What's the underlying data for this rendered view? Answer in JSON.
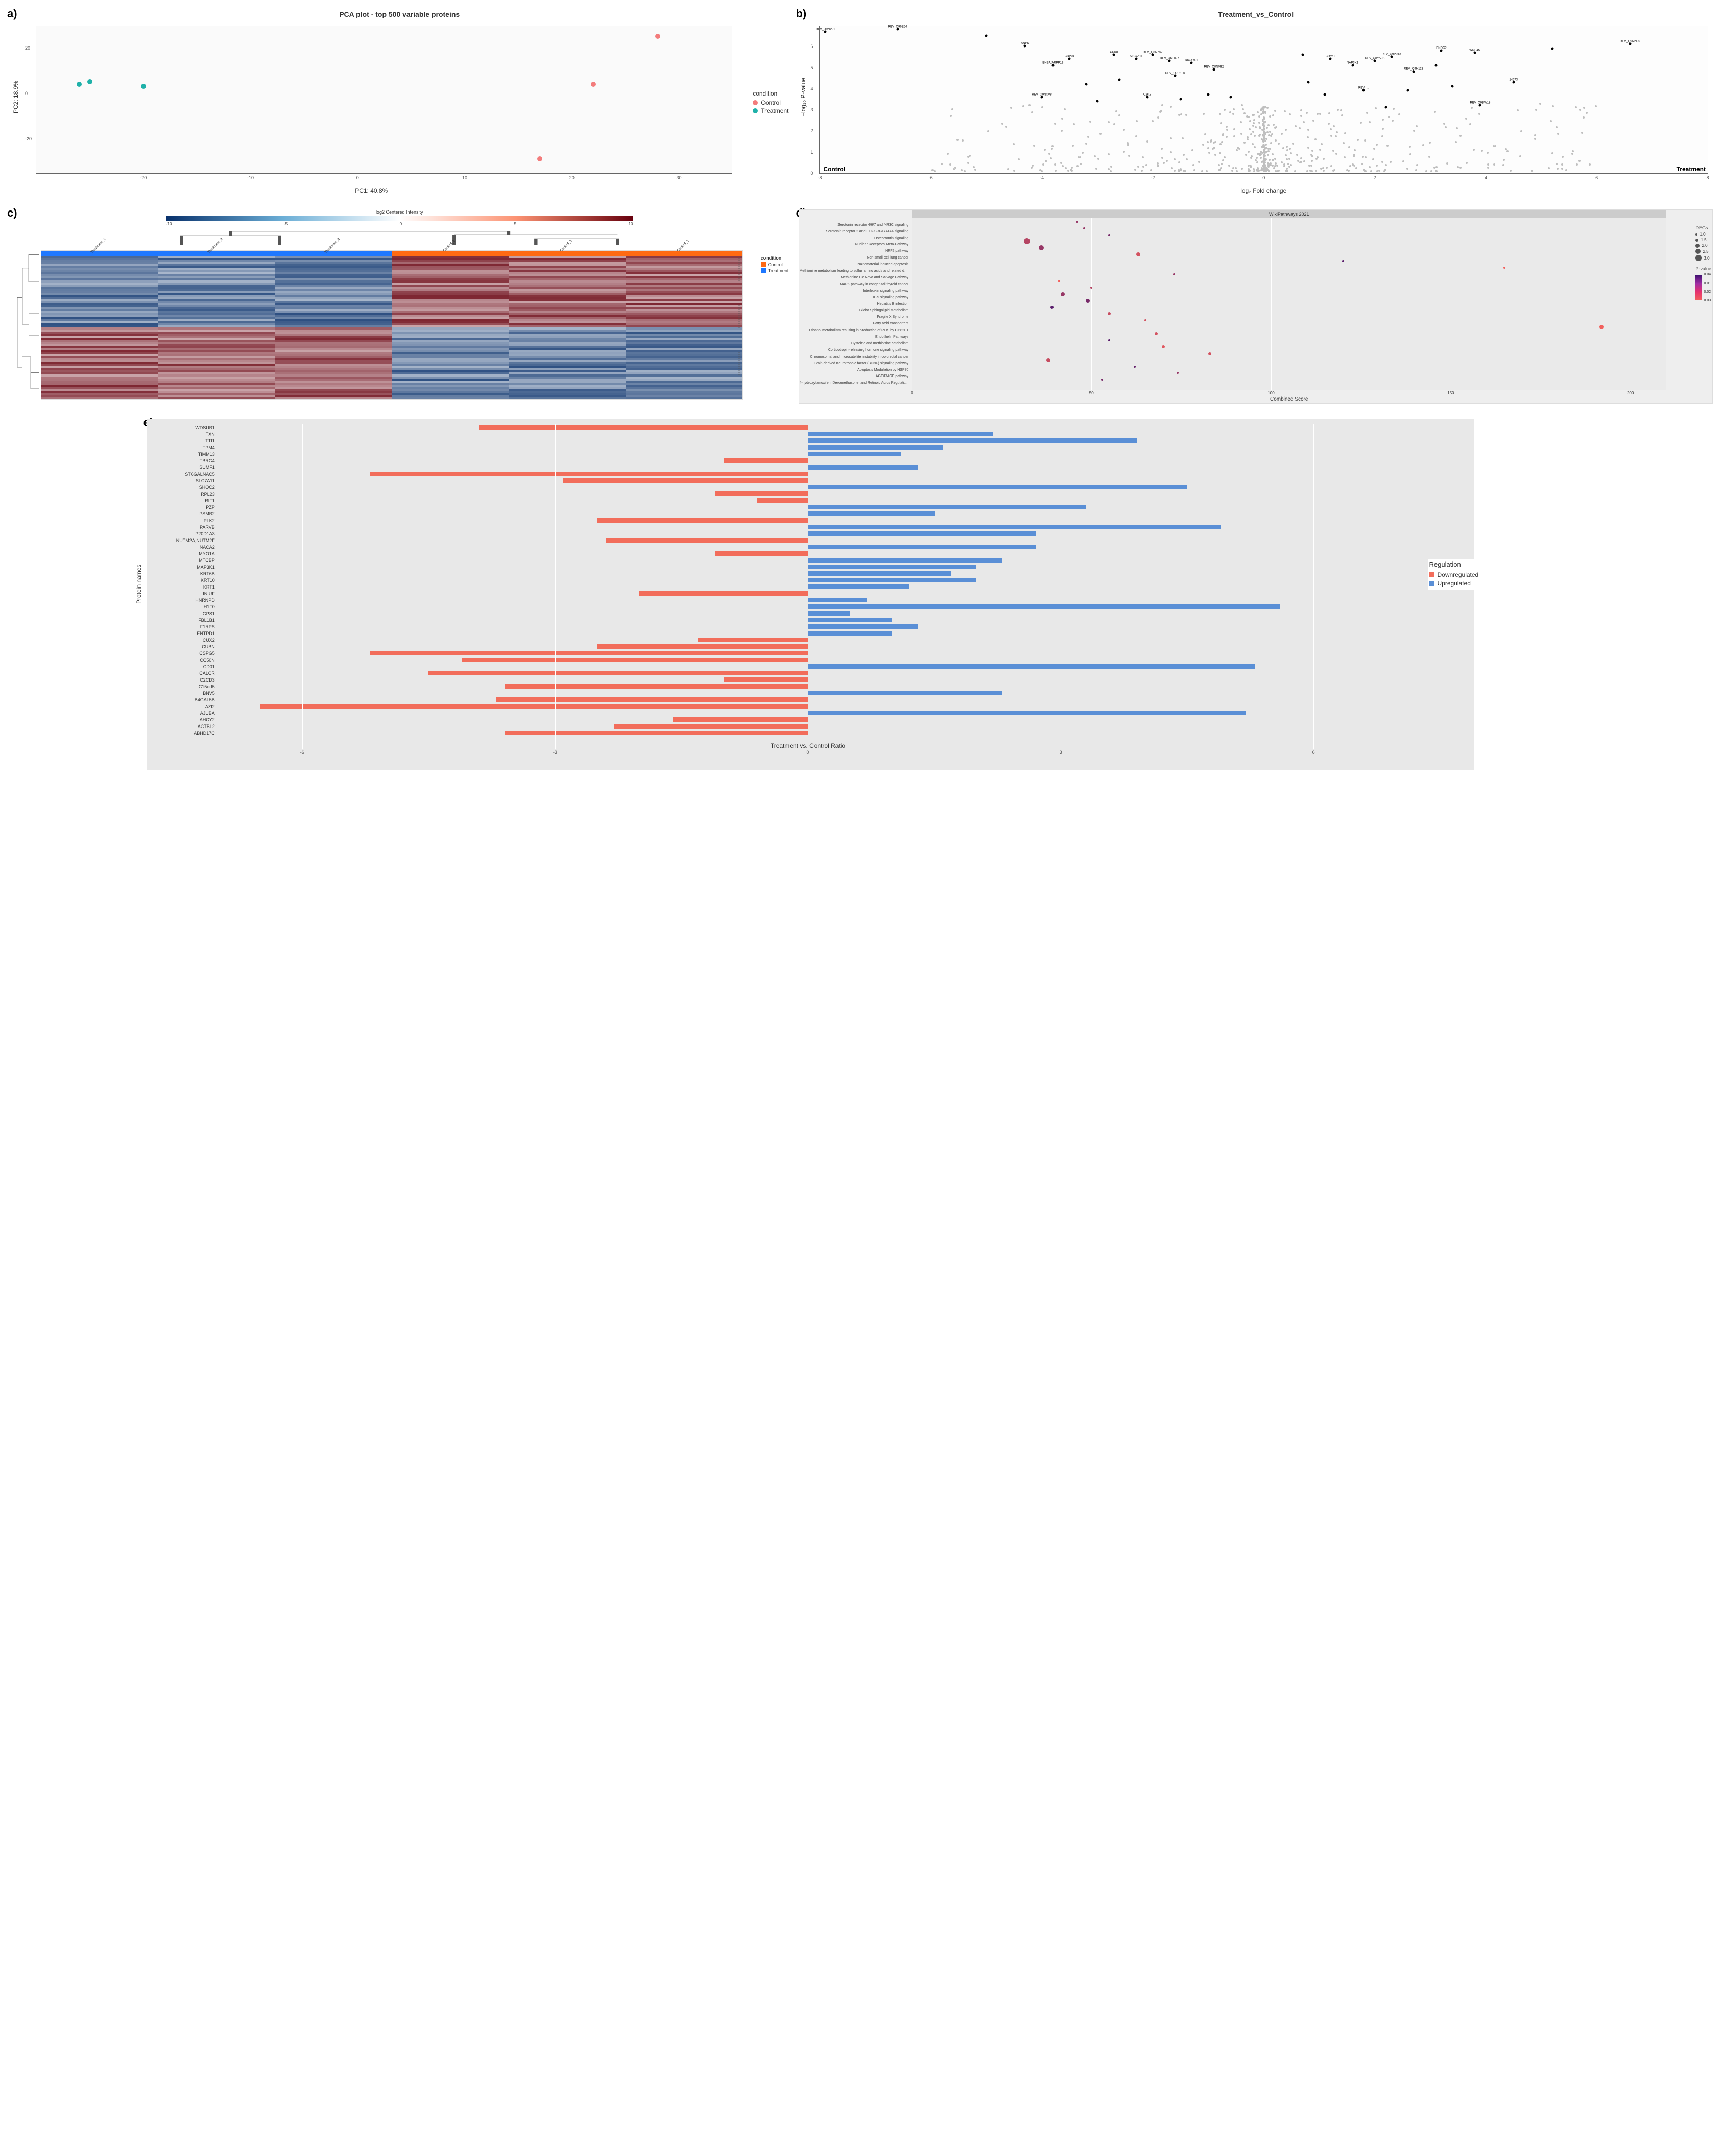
{
  "figure": {
    "panels": {
      "a": {
        "label": "a)",
        "type": "scatter",
        "title": "PCA plot - top 500 variable proteins",
        "xlabel": "PC1: 40.8%",
        "ylabel": "PC2: 18.9%",
        "xlim": [
          -30,
          35
        ],
        "ylim": [
          -35,
          30
        ],
        "xticks": [
          -20,
          -10,
          0,
          10,
          20,
          30
        ],
        "yticks": [
          -20,
          0,
          20
        ],
        "background": "#fafafa",
        "axis_color": "#666666",
        "point_size": 10,
        "legend_title": "condition",
        "series": [
          {
            "name": "Control",
            "color": "#f37c7c",
            "points": [
              {
                "x": 28,
                "y": 23
              },
              {
                "x": 22,
                "y": 2
              },
              {
                "x": 17,
                "y": -31
              }
            ]
          },
          {
            "name": "Treatment",
            "color": "#1fb1a9",
            "points": [
              {
                "x": -26,
                "y": 2
              },
              {
                "x": -25,
                "y": 3
              },
              {
                "x": -20,
                "y": 1
              }
            ]
          }
        ]
      },
      "b": {
        "label": "b)",
        "type": "volcano",
        "title": "Treatment_vs_Control",
        "xlabel": "log₂ Fold change",
        "ylabel": "−log₁₀ P-value",
        "xlim": [
          -8,
          8
        ],
        "ylim": [
          0,
          7
        ],
        "xticks": [
          -8,
          -6,
          -4,
          -2,
          0,
          2,
          4,
          6,
          8
        ],
        "yticks": [
          0,
          1,
          2,
          3,
          4,
          5,
          6
        ],
        "ns_color": "#bfbfbf",
        "sig_color": "#000000",
        "corner_left": "Control",
        "corner_right": "Treatment",
        "n_ns_points": 600,
        "sig_points": [
          {
            "x": -7.9,
            "y": 6.6,
            "label": "REV_Q9NVJ1"
          },
          {
            "x": -6.6,
            "y": 6.7,
            "label": "REV_Q96E54"
          },
          {
            "x": -5.0,
            "y": 6.4,
            "label": ""
          },
          {
            "x": -4.3,
            "y": 5.9,
            "label": "ANPK"
          },
          {
            "x": -3.5,
            "y": 5.3,
            "label": "CDP04"
          },
          {
            "x": -3.8,
            "y": 5.0,
            "label": "ENSA/ARPP19"
          },
          {
            "x": -2.7,
            "y": 5.5,
            "label": "CUK8"
          },
          {
            "x": -2.3,
            "y": 5.3,
            "label": "SLC7A11"
          },
          {
            "x": -2.0,
            "y": 5.5,
            "label": "REV_Q8N7A7"
          },
          {
            "x": -1.7,
            "y": 5.2,
            "label": "REV_Q6P0J7"
          },
          {
            "x": -1.3,
            "y": 5.1,
            "label": "DIOXYC1"
          },
          {
            "x": -0.9,
            "y": 4.8,
            "label": "REV_Q8N0B2"
          },
          {
            "x": -1.6,
            "y": 4.5,
            "label": "REV_Q9P2T8"
          },
          {
            "x": -2.6,
            "y": 4.3,
            "label": ""
          },
          {
            "x": -3.2,
            "y": 4.1,
            "label": ""
          },
          {
            "x": -4.0,
            "y": 3.5,
            "label": "REV_Q9NXV8"
          },
          {
            "x": -3.0,
            "y": 3.3,
            "label": ""
          },
          {
            "x": -2.1,
            "y": 3.5,
            "label": "C2K8"
          },
          {
            "x": -1.5,
            "y": 3.4,
            "label": ""
          },
          {
            "x": -1.0,
            "y": 3.6,
            "label": ""
          },
          {
            "x": 0.7,
            "y": 5.5,
            "label": ""
          },
          {
            "x": 1.2,
            "y": 5.3,
            "label": "CR/MT"
          },
          {
            "x": 1.6,
            "y": 5.0,
            "label": "NAP3K1"
          },
          {
            "x": 2.0,
            "y": 5.2,
            "label": "REV_Q8YA0S"
          },
          {
            "x": 2.3,
            "y": 5.4,
            "label": "REV_Q9P0T3"
          },
          {
            "x": 2.7,
            "y": 4.7,
            "label": "REV_Q9H123"
          },
          {
            "x": 3.1,
            "y": 5.0,
            "label": ""
          },
          {
            "x": 3.2,
            "y": 5.7,
            "label": "ENDC2"
          },
          {
            "x": 3.8,
            "y": 5.6,
            "label": "WNP45"
          },
          {
            "x": 5.2,
            "y": 5.8,
            "label": ""
          },
          {
            "x": 6.6,
            "y": 6.0,
            "label": "REV_Q9MN90"
          },
          {
            "x": 4.5,
            "y": 4.2,
            "label": "14573"
          },
          {
            "x": 3.4,
            "y": 4.0,
            "label": ""
          },
          {
            "x": 2.6,
            "y": 3.8,
            "label": ""
          },
          {
            "x": 1.8,
            "y": 3.8,
            "label": "REV_..."
          },
          {
            "x": 1.1,
            "y": 3.6,
            "label": ""
          },
          {
            "x": 0.8,
            "y": 4.2,
            "label": ""
          },
          {
            "x": 3.9,
            "y": 3.1,
            "label": "REV_Q9BW18"
          },
          {
            "x": 2.2,
            "y": 3.0,
            "label": ""
          },
          {
            "x": -0.6,
            "y": 3.5,
            "label": ""
          }
        ]
      },
      "c": {
        "label": "c)",
        "type": "heatmap",
        "legend_title": "log2 Centered Intensity",
        "legend_ticks": [
          "-10",
          "-5",
          "0",
          "5",
          "10"
        ],
        "colormap_low": "#08306b",
        "colormap_mid": "#ffffff",
        "colormap_high": "#67000d",
        "columns": [
          "Treatment_1",
          "Treatment_2",
          "Treatment_3",
          "Control_2",
          "Control_3",
          "Control_1"
        ],
        "condition_colors": {
          "Control": "#ff6a13",
          "Treatment": "#1f78ff"
        },
        "column_conditions": [
          "Treatment",
          "Treatment",
          "Treatment",
          "Control",
          "Control",
          "Control"
        ],
        "side_legend_title": "condition",
        "n_rows": 70,
        "seed": 7
      },
      "d": {
        "label": "d)",
        "type": "dotplot",
        "header": "WikiPathways 2021",
        "xlabel": "Combined Score",
        "xlim": [
          0,
          210
        ],
        "xticks": [
          0,
          50,
          100,
          150,
          200
        ],
        "deg_legend_title": "DEGs",
        "deg_sizes": [
          1.0,
          1.5,
          2.0,
          2.5,
          3.0
        ],
        "pval_legend_title": "P-value",
        "pval_ticks": [
          "0.04",
          "0.01",
          "0.02",
          "0.03"
        ],
        "color_low": "#3b0f6f",
        "color_high": "#f2605d",
        "background": "#eaeaea",
        "terms": [
          {
            "name": "Serotonin receptor 4/6/7 and NR3C signaling",
            "score": 46,
            "degs": 1.0,
            "p": 0.02
          },
          {
            "name": "Serotonin receptor 2 and ELK-SRF/GATA4 signaling",
            "score": 48,
            "degs": 1.0,
            "p": 0.02
          },
          {
            "name": "Osteopontin signaling",
            "score": 55,
            "degs": 1.0,
            "p": 0.015
          },
          {
            "name": "Nuclear Receptors Meta-Pathway",
            "score": 32,
            "degs": 3.0,
            "p": 0.025
          },
          {
            "name": "NRF2 pathway",
            "score": 36,
            "degs": 2.5,
            "p": 0.02
          },
          {
            "name": "Non-small cell lung cancer",
            "score": 63,
            "degs": 2.0,
            "p": 0.03
          },
          {
            "name": "Nanomaterial induced apoptosis",
            "score": 120,
            "degs": 1.0,
            "p": 0.01
          },
          {
            "name": "Methionine metabolism leading to sulfur amino acids and related disorders",
            "score": 165,
            "degs": 1.0,
            "p": 0.035
          },
          {
            "name": "Methionine De Novo and Salvage Pathway",
            "score": 73,
            "degs": 1.0,
            "p": 0.02
          },
          {
            "name": "MAPK pathway in congenital thyroid cancer",
            "score": 41,
            "degs": 1.0,
            "p": 0.035
          },
          {
            "name": "Interleukin signaling pathway",
            "score": 50,
            "degs": 1.0,
            "p": 0.025
          },
          {
            "name": "IL-9 signaling pathway",
            "score": 42,
            "degs": 2.0,
            "p": 0.02
          },
          {
            "name": "Hepatitis B infection",
            "score": 49,
            "degs": 2.0,
            "p": 0.015
          },
          {
            "name": "Globo Sphingolipid Metabolism",
            "score": 39,
            "degs": 1.5,
            "p": 0.01
          },
          {
            "name": "Fragile X Syndrome",
            "score": 55,
            "degs": 1.5,
            "p": 0.028
          },
          {
            "name": "Fatty acid transporters",
            "score": 65,
            "degs": 1.0,
            "p": 0.03
          },
          {
            "name": "Ethanol metabolism resulting in production of ROS by CYP2E1",
            "score": 192,
            "degs": 2.0,
            "p": 0.035
          },
          {
            "name": "Endothelin Pathways",
            "score": 68,
            "degs": 1.5,
            "p": 0.03
          },
          {
            "name": "Cysteine and methionine catabolism",
            "score": 55,
            "degs": 1.0,
            "p": 0.01
          },
          {
            "name": "Corticotropin-releasing hormone signaling pathway",
            "score": 70,
            "degs": 1.5,
            "p": 0.032
          },
          {
            "name": "Chromosomal and microsatellite instability in colorectal cancer",
            "score": 83,
            "degs": 1.5,
            "p": 0.03
          },
          {
            "name": "Brain-derived neurotrophic factor (BDNF) signaling pathway",
            "score": 38,
            "degs": 2.0,
            "p": 0.028
          },
          {
            "name": "Apoptosis Modulation by HSP70",
            "score": 62,
            "degs": 1.0,
            "p": 0.012
          },
          {
            "name": "AGE/RAGE pathway",
            "score": 74,
            "degs": 1.0,
            "p": 0.02
          },
          {
            "name": "4-hydroxytamoxifen, Dexamethasone, and Retinoic Acids Regulation of p27 Expression",
            "score": 53,
            "degs": 1.0,
            "p": 0.015
          }
        ]
      },
      "e": {
        "label": "e)",
        "type": "bar",
        "xlabel": "Treatment vs. Control Ratio",
        "ylabel": "Protein names",
        "xlim": [
          -7,
          7
        ],
        "xticks": [
          -6,
          -3,
          0,
          3,
          6
        ],
        "background": "#e8e8e8",
        "grid_color": "#ffffff",
        "legend_title": "Regulation",
        "colors": {
          "Downregulated": "#f26d5b",
          "Upregulated": "#5a8fd6"
        },
        "bars": [
          {
            "name": "WDSUB1",
            "value": -3.9
          },
          {
            "name": "TXN",
            "value": 2.2
          },
          {
            "name": "TTI1",
            "value": 3.9
          },
          {
            "name": "TPM4",
            "value": 1.6
          },
          {
            "name": "TIMM13",
            "value": 1.1
          },
          {
            "name": "TBRG4",
            "value": -1.0
          },
          {
            "name": "SUMF1",
            "value": 1.3
          },
          {
            "name": "ST6GALNAC5",
            "value": -5.2
          },
          {
            "name": "SLC7A11",
            "value": -2.9
          },
          {
            "name": "SHOC2",
            "value": 4.5
          },
          {
            "name": "RPL23",
            "value": -1.1
          },
          {
            "name": "RIF1",
            "value": -0.6
          },
          {
            "name": "PZP",
            "value": 3.3
          },
          {
            "name": "PSMB2",
            "value": 1.5
          },
          {
            "name": "PLK2",
            "value": -2.5
          },
          {
            "name": "PARVB",
            "value": 4.9
          },
          {
            "name": "P20D1A3",
            "value": 2.7
          },
          {
            "name": "NUTM2A;NUTM2F",
            "value": -2.4
          },
          {
            "name": "NACA2",
            "value": 2.7
          },
          {
            "name": "MYO1A",
            "value": -1.1
          },
          {
            "name": "MTCBP",
            "value": 2.3
          },
          {
            "name": "MAP3K1",
            "value": 2.0
          },
          {
            "name": "KRT6B",
            "value": 1.7
          },
          {
            "name": "KRT10",
            "value": 2.0
          },
          {
            "name": "KRT1",
            "value": 1.2
          },
          {
            "name": "INIUF",
            "value": -2.0
          },
          {
            "name": "HNRNPD",
            "value": 0.7
          },
          {
            "name": "H1F0",
            "value": 5.6
          },
          {
            "name": "GPS1",
            "value": 0.5
          },
          {
            "name": "FBL1B1",
            "value": 1.0
          },
          {
            "name": "F1RPS",
            "value": 1.3
          },
          {
            "name": "ENTPD1",
            "value": 1.0
          },
          {
            "name": "CUX2",
            "value": -1.3
          },
          {
            "name": "CUBN",
            "value": -2.5
          },
          {
            "name": "CSPG5",
            "value": -5.2
          },
          {
            "name": "CC50N",
            "value": -4.1
          },
          {
            "name": "CD01",
            "value": 5.3
          },
          {
            "name": "CALCR",
            "value": -4.5
          },
          {
            "name": "C2CD3",
            "value": -1.0
          },
          {
            "name": "C15orf5",
            "value": -3.6
          },
          {
            "name": "BNV5",
            "value": 2.3
          },
          {
            "name": "B4GAL5B",
            "value": -3.7
          },
          {
            "name": "AZI2",
            "value": -6.5
          },
          {
            "name": "AJUBA",
            "value": 5.2
          },
          {
            "name": "AHCY2",
            "value": -1.6
          },
          {
            "name": "ACTBL2",
            "value": -2.3
          },
          {
            "name": "ABHD17C",
            "value": -3.6
          }
        ]
      }
    }
  }
}
